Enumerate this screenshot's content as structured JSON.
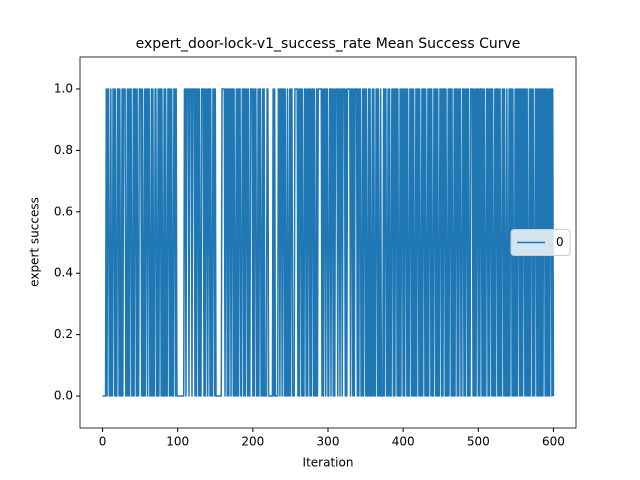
{
  "chart_data": {
    "type": "line",
    "title": "expert_door-lock-v1_success_rate Mean Success Curve",
    "xlabel": "Iteration",
    "ylabel": "expert success",
    "xlim": [
      -30,
      630
    ],
    "ylim": [
      -0.104,
      1.104
    ],
    "xticks": [
      0,
      100,
      200,
      300,
      400,
      500,
      600
    ],
    "yticks": [
      {
        "value": 0,
        "label": "0.0"
      },
      {
        "value": 0.2,
        "label": "0.2"
      },
      {
        "value": 0.4,
        "label": "0.4"
      },
      {
        "value": 0.6,
        "label": "0.6"
      },
      {
        "value": 0.8,
        "label": "0.8"
      },
      {
        "value": 1,
        "label": "1.0"
      }
    ],
    "legend": "center right",
    "x": [
      0,
      1,
      2,
      3,
      4,
      5,
      6,
      7,
      8,
      9,
      10,
      11,
      12,
      13,
      14,
      15,
      16,
      17,
      18,
      19,
      20,
      21,
      22,
      23,
      24,
      25,
      26,
      27,
      28,
      29,
      30,
      31,
      32,
      33,
      34,
      35,
      36,
      37,
      38,
      39,
      40,
      41,
      42,
      43,
      44,
      45,
      46,
      47,
      48,
      49,
      50,
      51,
      52,
      53,
      54,
      55,
      56,
      57,
      58,
      59,
      60,
      61,
      62,
      63,
      64,
      65,
      66,
      67,
      68,
      69,
      70,
      71,
      72,
      73,
      74,
      75,
      76,
      77,
      78,
      79,
      80,
      81,
      82,
      83,
      84,
      85,
      86,
      87,
      88,
      89,
      90,
      91,
      92,
      93,
      94,
      95,
      96,
      97,
      98,
      99,
      100,
      101,
      102,
      103,
      104,
      105,
      106,
      107,
      108,
      109,
      110,
      111,
      112,
      113,
      114,
      115,
      116,
      117,
      118,
      119,
      120,
      121,
      122,
      123,
      124,
      125,
      126,
      127,
      128,
      129,
      130,
      131,
      132,
      133,
      134,
      135,
      136,
      137,
      138,
      139,
      140,
      141,
      142,
      143,
      144,
      145,
      146,
      147,
      148,
      149,
      150,
      151,
      152,
      153,
      154,
      155,
      156,
      157,
      158,
      159,
      160,
      161,
      162,
      163,
      164,
      165,
      166,
      167,
      168,
      169,
      170,
      171,
      172,
      173,
      174,
      175,
      176,
      177,
      178,
      179,
      180,
      181,
      182,
      183,
      184,
      185,
      186,
      187,
      188,
      189,
      190,
      191,
      192,
      193,
      194,
      195,
      196,
      197,
      198,
      199,
      200,
      201,
      202,
      203,
      204,
      205,
      206,
      207,
      208,
      209,
      210,
      211,
      212,
      213,
      214,
      215,
      216,
      217,
      218,
      219,
      220,
      221,
      222,
      223,
      224,
      225,
      226,
      227,
      228,
      229,
      230,
      231,
      232,
      233,
      234,
      235,
      236,
      237,
      238,
      239,
      240,
      241,
      242,
      243,
      244,
      245,
      246,
      247,
      248,
      249,
      250,
      251,
      252,
      253,
      254,
      255,
      256,
      257,
      258,
      259,
      260,
      261,
      262,
      263,
      264,
      265,
      266,
      267,
      268,
      269,
      270,
      271,
      272,
      273,
      274,
      275,
      276,
      277,
      278,
      279,
      280,
      281,
      282,
      283,
      284,
      285,
      286,
      287,
      288,
      289,
      290,
      291,
      292,
      293,
      294,
      295,
      296,
      297,
      298,
      299,
      300,
      301,
      302,
      303,
      304,
      305,
      306,
      307,
      308,
      309,
      310,
      311,
      312,
      313,
      314,
      315,
      316,
      317,
      318,
      319,
      320,
      321,
      322,
      323,
      324,
      325,
      326,
      327,
      328,
      329,
      330,
      331,
      332,
      333,
      334,
      335,
      336,
      337,
      338,
      339,
      340,
      341,
      342,
      343,
      344,
      345,
      346,
      347,
      348,
      349,
      350,
      351,
      352,
      353,
      354,
      355,
      356,
      357,
      358,
      359,
      360,
      361,
      362,
      363,
      364,
      365,
      366,
      367,
      368,
      369,
      370,
      371,
      372,
      373,
      374,
      375,
      376,
      377,
      378,
      379,
      380,
      381,
      382,
      383,
      384,
      385,
      386,
      387,
      388,
      389,
      390,
      391,
      392,
      393,
      394,
      395,
      396,
      397,
      398,
      399,
      400,
      401,
      402,
      403,
      404,
      405,
      406,
      407,
      408,
      409,
      410,
      411,
      412,
      413,
      414,
      415,
      416,
      417,
      418,
      419,
      420,
      421,
      422,
      423,
      424,
      425,
      426,
      427,
      428,
      429,
      430,
      431,
      432,
      433,
      434,
      435,
      436,
      437,
      438,
      439,
      440,
      441,
      442,
      443,
      444,
      445,
      446,
      447,
      448,
      449,
      450,
      451,
      452,
      453,
      454,
      455,
      456,
      457,
      458,
      459,
      460,
      461,
      462,
      463,
      464,
      465,
      466,
      467,
      468,
      469,
      470,
      471,
      472,
      473,
      474,
      475,
      476,
      477,
      478,
      479,
      480,
      481,
      482,
      483,
      484,
      485,
      486,
      487,
      488,
      489,
      490,
      491,
      492,
      493,
      494,
      495,
      496,
      497,
      498,
      499,
      500,
      501,
      502,
      503,
      504,
      505,
      506,
      507,
      508,
      509,
      510,
      511,
      512,
      513,
      514,
      515,
      516,
      517,
      518,
      519,
      520,
      521,
      522,
      523,
      524,
      525,
      526,
      527,
      528,
      529,
      530,
      531,
      532,
      533,
      534,
      535,
      536,
      537,
      538,
      539,
      540,
      541,
      542,
      543,
      544,
      545,
      546,
      547,
      548,
      549,
      550,
      551,
      552,
      553,
      554,
      555,
      556,
      557,
      558,
      559,
      560,
      561,
      562,
      563,
      564,
      565,
      566,
      567,
      568,
      569,
      570,
      571,
      572,
      573,
      574,
      575,
      576,
      577,
      578,
      579,
      580,
      581,
      582,
      583,
      584,
      585,
      586,
      587,
      588,
      589,
      590,
      591,
      592,
      593,
      594,
      595,
      596,
      597,
      598,
      599,
      600
    ],
    "series": [
      {
        "name": "0",
        "color": "#1f77b4",
        "values": [
          0,
          0,
          0,
          0,
          0,
          1,
          0,
          1,
          1,
          0,
          0,
          1,
          0,
          0,
          1,
          1,
          0,
          1,
          0,
          0,
          1,
          1,
          0,
          1,
          0,
          0,
          1,
          0,
          1,
          1,
          1,
          0,
          0,
          1,
          0,
          1,
          0,
          1,
          1,
          0,
          0,
          1,
          0,
          1,
          1,
          0,
          1,
          0,
          0,
          1,
          1,
          1,
          0,
          1,
          0,
          0,
          1,
          0,
          1,
          1,
          0,
          1,
          1,
          0,
          0,
          1,
          0,
          1,
          0,
          0,
          1,
          1,
          0,
          0,
          1,
          0,
          1,
          1,
          0,
          1,
          0,
          0,
          1,
          0,
          1,
          0,
          0,
          1,
          1,
          0,
          1,
          0,
          1,
          0,
          0,
          1,
          1,
          0,
          1,
          0,
          0,
          0,
          0,
          0,
          0,
          0,
          0,
          0,
          0,
          1,
          1,
          0,
          1,
          1,
          1,
          0,
          1,
          1,
          1,
          0,
          1,
          1,
          1,
          0,
          1,
          0,
          1,
          1,
          0,
          1,
          0,
          0,
          1,
          1,
          1,
          0,
          1,
          0,
          1,
          1,
          0,
          1,
          1,
          0,
          1,
          0,
          0,
          1,
          1,
          0,
          1,
          0,
          0,
          0,
          0,
          0,
          0,
          0,
          0,
          1,
          1,
          1,
          1,
          0,
          1,
          1,
          0,
          1,
          0,
          1,
          1,
          0,
          1,
          1,
          0,
          1,
          0,
          0,
          1,
          0,
          1,
          0,
          1,
          1,
          0,
          0,
          1,
          1,
          0,
          1,
          0,
          1,
          1,
          0,
          1,
          0,
          0,
          1,
          1,
          1,
          0,
          1,
          0,
          1,
          1,
          0,
          0,
          1,
          0,
          1,
          1,
          0,
          0,
          1,
          0,
          1,
          0,
          0,
          0,
          1,
          1,
          0,
          0,
          0,
          0,
          0,
          0,
          1,
          0,
          1,
          0,
          0,
          0,
          0,
          1,
          1,
          0,
          1,
          1,
          0,
          1,
          1,
          0,
          1,
          0,
          0,
          1,
          0,
          0,
          1,
          0,
          1,
          1,
          0,
          0,
          0,
          1,
          1,
          1,
          1,
          0,
          1,
          0,
          1,
          1,
          0,
          1,
          0,
          0,
          1,
          1,
          0,
          1,
          0,
          1,
          1,
          0,
          1,
          0,
          1,
          1,
          0,
          1,
          0,
          0,
          1,
          0,
          1,
          1,
          1,
          1,
          1,
          0,
          1,
          0,
          1,
          1,
          0,
          1,
          1,
          0,
          0,
          1,
          1,
          0,
          1,
          1,
          0,
          1,
          0,
          1,
          1,
          1,
          0,
          1,
          1,
          0,
          1,
          1,
          0,
          1,
          1,
          1,
          0,
          1,
          0,
          1,
          1,
          1,
          1,
          0,
          1,
          1,
          0,
          1,
          0,
          1,
          1,
          1,
          0,
          1,
          0,
          1,
          1,
          0,
          0,
          1,
          0,
          1,
          1,
          0,
          1,
          0,
          0,
          1,
          0,
          1,
          0,
          0,
          1,
          0,
          1,
          0,
          0,
          1,
          1,
          0,
          1,
          0,
          0,
          1,
          0,
          0,
          0,
          1,
          0,
          1,
          1,
          0,
          0,
          1,
          0,
          1,
          0,
          0,
          1,
          1,
          0,
          1,
          0,
          1,
          1,
          0,
          1,
          0,
          0,
          1,
          0,
          1,
          1,
          0,
          1,
          0,
          1,
          1,
          0,
          1,
          0,
          0,
          1,
          1,
          0,
          1,
          0,
          1,
          0,
          0,
          1,
          0,
          1,
          1,
          0,
          1,
          0,
          0,
          1,
          0,
          1,
          1,
          0,
          1,
          0,
          0,
          1,
          0,
          1,
          1,
          0,
          1,
          0,
          0,
          1,
          1,
          0,
          1,
          0,
          1,
          0,
          0,
          1,
          1,
          0,
          1,
          0,
          1,
          1,
          0,
          1,
          0,
          0,
          1,
          0,
          1,
          1,
          0,
          1,
          0,
          0,
          1,
          0,
          1,
          1,
          0,
          1,
          0,
          1,
          1,
          0,
          0,
          1,
          1,
          0,
          1,
          0,
          1,
          1,
          0,
          1,
          0,
          0,
          1,
          1,
          1,
          0,
          1,
          0,
          1,
          0,
          1,
          1,
          0,
          1,
          0,
          1,
          1,
          0,
          1,
          0,
          1,
          0,
          0,
          1,
          1,
          0,
          1,
          0,
          1,
          1,
          0,
          1,
          0,
          0,
          1,
          0,
          1,
          1,
          0,
          1,
          0,
          1,
          0,
          0,
          1,
          1,
          0,
          1,
          0,
          0,
          1,
          0,
          0,
          1,
          0,
          1,
          1,
          0,
          1,
          0,
          0,
          1,
          0,
          1,
          0,
          1,
          1,
          0,
          1,
          0,
          1,
          0,
          1,
          1,
          0,
          1,
          0,
          1,
          0,
          0,
          1,
          0,
          1,
          1,
          0,
          1,
          0,
          0,
          1,
          1,
          0,
          1,
          0,
          1,
          0,
          1,
          0,
          1,
          0,
          1,
          1,
          0,
          1,
          0,
          1,
          0,
          1,
          0,
          1,
          1,
          0,
          1,
          0
        ]
      }
    ]
  }
}
